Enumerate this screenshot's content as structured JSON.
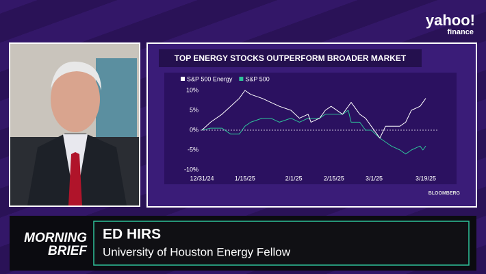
{
  "brand": {
    "logo": "yahoo!",
    "sub": "finance"
  },
  "chart_data": {
    "type": "line",
    "title": "TOP ENERGY STOCKS OUTPERFORM BROADER MARKET",
    "x": [
      "12/31/24",
      "1/3/25",
      "1/7/25",
      "1/10/25",
      "1/13/25",
      "1/15/25",
      "1/17/25",
      "1/21/25",
      "1/24/25",
      "1/27/25",
      "1/31/25",
      "2/3/25",
      "2/6/25",
      "2/7/25",
      "2/10/25",
      "2/12/25",
      "2/14/25",
      "2/18/25",
      "2/20/25",
      "2/21/25",
      "2/24/25",
      "2/26/25",
      "2/28/25",
      "3/3/25",
      "3/5/25",
      "3/7/25",
      "3/10/25",
      "3/12/25",
      "3/14/25",
      "3/17/25",
      "3/18/25",
      "3/19/25"
    ],
    "series": [
      {
        "name": "S&P 500 Energy",
        "color": "#ffffff",
        "values": [
          0,
          2,
          4,
          6,
          8,
          10,
          9,
          8,
          7,
          6,
          5,
          3,
          4,
          2,
          3,
          5,
          6,
          4,
          6,
          7,
          4,
          3,
          1,
          -2,
          1,
          1,
          1,
          2,
          5,
          6,
          7,
          8
        ]
      },
      {
        "name": "S&P 500",
        "color": "#2fc29a",
        "values": [
          0,
          0.5,
          0.5,
          -1,
          -1,
          1,
          2,
          3,
          3,
          2,
          3,
          2,
          3,
          3,
          3,
          4,
          4,
          4,
          5,
          2,
          2,
          0,
          0,
          -2,
          -3,
          -4,
          -5,
          -6,
          -5,
          -4,
          -5,
          -4
        ]
      }
    ],
    "ylim": [
      -11,
      12
    ],
    "yticks": [
      {
        "value": -10,
        "label": "-10%"
      },
      {
        "value": -5,
        "label": "-5%"
      },
      {
        "value": 0,
        "label": "0%"
      },
      {
        "value": 5,
        "label": "5%"
      },
      {
        "value": 10,
        "label": "10%"
      }
    ],
    "xticks": [
      "12/31/24",
      "1/15/25",
      "2/1/25",
      "2/15/25",
      "3/1/25",
      "3/19/25"
    ],
    "zero_line": true,
    "legend": "top-left",
    "source": "BLOOMBERG"
  },
  "show": {
    "line1": "MORNING",
    "line2": "BRIEF"
  },
  "lower_third": {
    "name": "ED HIRS",
    "title": "University of Houston Energy Fellow"
  }
}
